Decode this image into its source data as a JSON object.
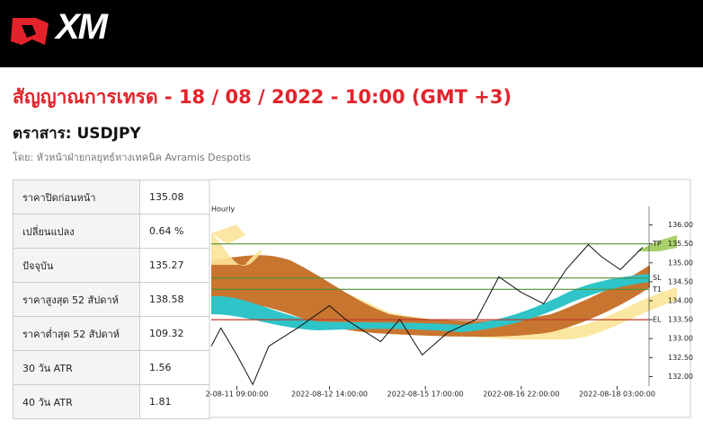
{
  "header": {
    "logo": "XM"
  },
  "title": "สัญญาณการเทรด - 18 / 08 / 2022 - 10:00 (GMT +3)",
  "instrument": "ตราสาร: USDJPY",
  "author": "โดย: หัวหน้าฝ่ายกลยุทธ์ทางเทคนิค Avramis Despotis",
  "table": {
    "rows": [
      [
        "ราคาปิดก่อนหน้า",
        "135.08"
      ],
      [
        "เปลี่ยนแปลง",
        "0.64 %"
      ],
      [
        "ปัจจุบัน",
        "135.27"
      ],
      [
        "ราคาสูงสุด 52 สัปดาห์",
        "138.58"
      ],
      [
        "ราคาต่ำสุด 52 สัปดาห์",
        "109.32"
      ],
      [
        "30 วัน ATR",
        "1.56"
      ],
      [
        "40 วัน ATR",
        "1.81"
      ]
    ]
  },
  "chart_data": {
    "type": "line",
    "title": "Hourly",
    "x": [
      0,
      3,
      8,
      13,
      18,
      27,
      37,
      42,
      53,
      59,
      66,
      74,
      83,
      90,
      97,
      104,
      111,
      118,
      122,
      128,
      135
    ],
    "values": [
      132.8,
      133.28,
      132.57,
      131.79,
      132.8,
      133.28,
      133.87,
      133.51,
      132.92,
      133.51,
      132.57,
      133.16,
      133.51,
      134.63,
      134.22,
      133.92,
      134.82,
      135.48,
      135.17,
      134.82,
      135.41
    ],
    "color": "#111111",
    "xlim": [
      0,
      137
    ],
    "xticks": [
      {
        "value": 8,
        "label": "2-08-11 09:00:00"
      },
      {
        "value": 37,
        "label": "2022-08-12 14:00:00"
      },
      {
        "value": 67,
        "label": "2022-08-15 17:00:00"
      },
      {
        "value": 97,
        "label": "2022-08-16 22:00:00"
      },
      {
        "value": 127,
        "label": "2022-08-18 03:00:00"
      }
    ],
    "ylim": [
      131.75,
      136.25
    ],
    "yticks": [
      {
        "value": 132,
        "label": "132.00"
      },
      {
        "value": 132.5,
        "label": "132.50"
      },
      {
        "value": 133,
        "label": "133.00"
      },
      {
        "value": 133.5,
        "label": "133.50"
      },
      {
        "value": 134,
        "label": "134.00"
      },
      {
        "value": 134.5,
        "label": "134.50"
      },
      {
        "value": 135,
        "label": "135.00"
      },
      {
        "value": 135.5,
        "label": "135.50"
      },
      {
        "value": 136,
        "label": "136.00"
      }
    ],
    "levels": [
      {
        "label": "TP",
        "value": 135.5,
        "color": "#4e8f3a"
      },
      {
        "label": "SL",
        "value": 134.6,
        "color": "#4e8f3a"
      },
      {
        "label": "T1",
        "value": 134.3,
        "color": "#4e8f3a"
      },
      {
        "label": "EL",
        "value": 133.5,
        "color": "#c0392b"
      }
    ]
  }
}
